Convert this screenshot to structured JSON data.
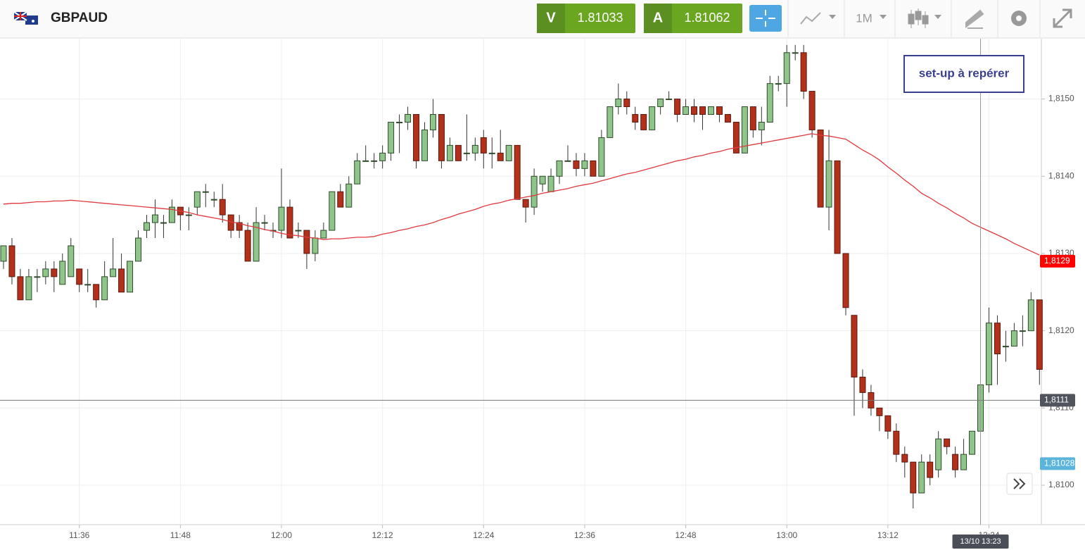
{
  "header": {
    "symbol": "GBPAUD",
    "sell_label": "V",
    "sell_price": "1.81033",
    "buy_label": "A",
    "buy_price": "1.81062",
    "timeframe": "1M"
  },
  "chart_data": {
    "type": "candlestick",
    "annotation": "set-up à repérer",
    "categories": [
      null,
      null,
      null,
      null,
      null,
      null,
      null,
      null,
      null,
      "11:36",
      null,
      null,
      null,
      null,
      null,
      null,
      null,
      null,
      null,
      null,
      null,
      "11:48",
      null,
      null,
      null,
      null,
      null,
      null,
      null,
      null,
      null,
      null,
      null,
      "12:00",
      null,
      null,
      null,
      null,
      null,
      null,
      null,
      null,
      null,
      null,
      null,
      "12:12",
      null,
      null,
      null,
      null,
      null,
      null,
      null,
      null,
      null,
      null,
      null,
      "12:24",
      null,
      null,
      null,
      null,
      null,
      null,
      null,
      null,
      null,
      null,
      null,
      "12:36",
      null,
      null,
      null,
      null,
      null,
      null,
      null,
      null,
      null,
      null,
      null,
      "12:48",
      null,
      null,
      null,
      null,
      null,
      null,
      null,
      null,
      null,
      null,
      null,
      "13:00",
      null,
      null,
      null,
      null,
      null,
      null,
      null,
      null,
      null,
      null,
      null,
      "13:12",
      null,
      null,
      null,
      null,
      null,
      null,
      null,
      null,
      null,
      null,
      null,
      "13:24",
      null,
      null,
      null,
      null,
      null,
      null
    ],
    "open": [
      1.8129,
      1.8131,
      1.8127,
      1.8124,
      1.8127,
      1.8127,
      1.8128,
      1.8126,
      1.8127,
      1.8128,
      1.8126,
      1.8126,
      1.8124,
      1.8127,
      1.8128,
      1.8125,
      1.8129,
      1.8133,
      1.8134,
      1.8134,
      1.8134,
      1.8136,
      1.8135,
      1.8136,
      1.8138,
      1.8137,
      1.8137,
      1.8135,
      1.8134,
      1.8133,
      1.8129,
      1.8134,
      1.8133,
      1.8133,
      1.8136,
      1.8133,
      1.8133,
      1.813,
      1.8132,
      1.8133,
      1.8138,
      1.8136,
      1.8139,
      1.8142,
      1.8142,
      1.8142,
      1.8143,
      1.8147,
      1.8147,
      1.8148,
      1.8142,
      1.8146,
      1.8148,
      1.8142,
      1.8144,
      1.8143,
      1.8143,
      1.8145,
      1.8143,
      1.8143,
      1.8142,
      1.8144,
      1.8137,
      1.8136,
      1.8139,
      1.8138,
      1.814,
      1.8142,
      1.8142,
      1.8141,
      1.8142,
      1.814,
      1.8145,
      1.8149,
      1.815,
      1.8148,
      1.8148,
      1.8146,
      1.8149,
      1.815,
      1.815,
      1.8148,
      1.8149,
      1.8149,
      1.8148,
      1.8149,
      1.8148,
      1.8147,
      1.8143,
      1.8149,
      1.8146,
      1.8147,
      1.8152,
      1.8152,
      1.8156,
      1.8156,
      1.8151,
      1.8146,
      1.8136,
      1.8142,
      1.813,
      1.8122,
      1.8114,
      1.8112,
      1.811,
      1.8109,
      1.8107,
      1.8104,
      1.8103,
      1.8099,
      1.8103,
      1.8102,
      1.8106,
      1.8104,
      1.8102,
      1.8104,
      1.8107,
      1.8113,
      1.8121,
      1.8118,
      1.8118,
      1.812,
      1.812,
      1.8124
    ],
    "high": [
      1.8131,
      1.8132,
      1.8128,
      1.8128,
      1.8128,
      1.8129,
      1.8129,
      1.813,
      1.8132,
      1.8128,
      1.8128,
      1.8126,
      1.8129,
      1.8132,
      1.813,
      1.8129,
      1.8133,
      1.8135,
      1.8137,
      1.8135,
      1.8137,
      1.8136,
      1.8136,
      1.8138,
      1.8139,
      1.8138,
      1.8139,
      1.8135,
      1.8135,
      1.8134,
      1.8136,
      1.8135,
      1.8134,
      1.8141,
      1.8137,
      1.8134,
      1.8133,
      1.8133,
      1.8134,
      1.8138,
      1.8139,
      1.814,
      1.8143,
      1.8144,
      1.8143,
      1.8144,
      1.8147,
      1.8148,
      1.8149,
      1.8148,
      1.8147,
      1.815,
      1.8148,
      1.8145,
      1.8144,
      1.8148,
      1.8145,
      1.8146,
      1.8145,
      1.8146,
      1.8144,
      1.8144,
      1.8137,
      1.8141,
      1.814,
      1.8141,
      1.8142,
      1.8144,
      1.8143,
      1.8143,
      1.8142,
      1.8146,
      1.8149,
      1.8152,
      1.8151,
      1.8149,
      1.8148,
      1.8149,
      1.815,
      1.8151,
      1.815,
      1.815,
      1.815,
      1.8149,
      1.8149,
      1.8149,
      1.8148,
      1.8147,
      1.8149,
      1.8149,
      1.8149,
      1.8153,
      1.8153,
      1.8157,
      1.8157,
      1.8157,
      1.8151,
      1.8146,
      1.8146,
      1.8142,
      1.813,
      1.8122,
      1.8115,
      1.8113,
      1.811,
      1.8109,
      1.8108,
      1.8105,
      1.8103,
      1.8104,
      1.8104,
      1.8107,
      1.8106,
      1.8105,
      1.8106,
      1.8107,
      1.8113,
      1.8123,
      1.8122,
      1.812,
      1.8121,
      1.8122,
      1.8125,
      1.8124
    ],
    "low": [
      1.8128,
      1.8126,
      1.8124,
      1.8124,
      1.8125,
      1.8126,
      1.8125,
      1.8126,
      1.8127,
      1.8125,
      1.8125,
      1.8123,
      1.8124,
      1.8127,
      1.8125,
      1.8125,
      1.8129,
      1.8132,
      1.8132,
      1.8132,
      1.8134,
      1.8133,
      1.8133,
      1.8135,
      1.8136,
      1.8136,
      1.8134,
      1.8132,
      1.8132,
      1.8129,
      1.8129,
      1.8133,
      1.8132,
      1.8132,
      1.8132,
      1.8132,
      1.8128,
      1.8129,
      1.8132,
      1.8133,
      1.8136,
      1.8136,
      1.8139,
      1.8142,
      1.8141,
      1.8141,
      1.8142,
      1.8143,
      1.8146,
      1.8141,
      1.8142,
      1.8145,
      1.8141,
      1.8142,
      1.8142,
      1.8142,
      1.8142,
      1.8141,
      1.8141,
      1.8142,
      1.8142,
      1.8137,
      1.8134,
      1.8135,
      1.8138,
      1.8138,
      1.8139,
      1.8142,
      1.814,
      1.814,
      1.814,
      1.814,
      1.8145,
      1.8148,
      1.8148,
      1.8146,
      1.8146,
      1.8146,
      1.8148,
      1.815,
      1.8147,
      1.8148,
      1.8147,
      1.8146,
      1.8148,
      1.8147,
      1.8147,
      1.8143,
      1.8143,
      1.8145,
      1.8144,
      1.8147,
      1.8151,
      1.8149,
      1.8155,
      1.815,
      1.8145,
      1.8136,
      1.8133,
      1.813,
      1.8122,
      1.8109,
      1.811,
      1.8109,
      1.8107,
      1.8106,
      1.8103,
      1.8101,
      1.8097,
      1.8099,
      1.81,
      1.8101,
      1.8104,
      1.8101,
      1.8102,
      1.8104,
      1.8107,
      1.8112,
      1.8113,
      1.8116,
      1.8118,
      1.8118,
      1.812,
      1.8113
    ],
    "close": [
      1.8131,
      1.8127,
      1.8124,
      1.8127,
      1.8127,
      1.8128,
      1.8127,
      1.8129,
      1.8131,
      1.8126,
      1.8126,
      1.8124,
      1.8127,
      1.8128,
      1.8125,
      1.8129,
      1.8132,
      1.8134,
      1.8135,
      1.8134,
      1.8136,
      1.8135,
      1.8135,
      1.8138,
      1.8138,
      1.8137,
      1.8135,
      1.8133,
      1.8133,
      1.8129,
      1.8134,
      1.8134,
      1.8133,
      1.8136,
      1.8132,
      1.8133,
      1.813,
      1.8132,
      1.8133,
      1.8138,
      1.8136,
      1.8139,
      1.8142,
      1.8142,
      1.8142,
      1.8143,
      1.8147,
      1.8147,
      1.8148,
      1.8142,
      1.8146,
      1.8148,
      1.8142,
      1.8144,
      1.8142,
      1.8143,
      1.8144,
      1.8143,
      1.8143,
      1.8142,
      1.8144,
      1.8137,
      1.8136,
      1.814,
      1.814,
      1.814,
      1.8142,
      1.8142,
      1.8141,
      1.8142,
      1.814,
      1.8145,
      1.8149,
      1.815,
      1.8149,
      1.8147,
      1.8146,
      1.8149,
      1.815,
      1.815,
      1.8148,
      1.8149,
      1.8148,
      1.8148,
      1.8149,
      1.8148,
      1.8147,
      1.8143,
      1.8149,
      1.8146,
      1.8147,
      1.8152,
      1.8152,
      1.8156,
      1.8156,
      1.8151,
      1.8146,
      1.8136,
      1.8142,
      1.813,
      1.8123,
      1.8114,
      1.8112,
      1.811,
      1.8109,
      1.8107,
      1.8104,
      1.8103,
      1.8099,
      1.8103,
      1.8101,
      1.8106,
      1.8105,
      1.8102,
      1.8104,
      1.8107,
      1.8113,
      1.8121,
      1.8117,
      1.8118,
      1.812,
      1.812,
      1.8124,
      1.8115
    ],
    "up_color": "#8fc58a",
    "down_color": "#b3301a",
    "moving_average": {
      "color": "#e0393e",
      "values": [
        1.81364,
        1.81365,
        1.81365,
        1.81366,
        1.81367,
        1.81367,
        1.81368,
        1.81368,
        1.81369,
        1.81368,
        1.81367,
        1.81366,
        1.81365,
        1.81364,
        1.81363,
        1.81362,
        1.81361,
        1.8136,
        1.81359,
        1.81358,
        1.81357,
        1.81355,
        1.81353,
        1.8135,
        1.81348,
        1.81346,
        1.81344,
        1.81341,
        1.81339,
        1.81336,
        1.81334,
        1.81331,
        1.81329,
        1.81326,
        1.81324,
        1.81323,
        1.81321,
        1.8132,
        1.81318,
        1.81319,
        1.81319,
        1.8132,
        1.81321,
        1.81321,
        1.81322,
        1.81325,
        1.81327,
        1.8133,
        1.81332,
        1.81335,
        1.81337,
        1.8134,
        1.81344,
        1.81347,
        1.81351,
        1.81354,
        1.81357,
        1.81361,
        1.81364,
        1.81366,
        1.81369,
        1.81371,
        1.81373,
        1.81375,
        1.81378,
        1.8138,
        1.81382,
        1.81384,
        1.81387,
        1.81389,
        1.81391,
        1.81394,
        1.81397,
        1.814,
        1.81403,
        1.81405,
        1.81408,
        1.81411,
        1.81414,
        1.81417,
        1.8142,
        1.81422,
        1.81425,
        1.81427,
        1.8143,
        1.81432,
        1.81435,
        1.81437,
        1.81439,
        1.81441,
        1.81443,
        1.81445,
        1.81447,
        1.81449,
        1.81451,
        1.81453,
        1.81455,
        1.81453,
        1.81452,
        1.8145,
        1.81448,
        1.81441,
        1.81434,
        1.81428,
        1.81421,
        1.81412,
        1.81404,
        1.81395,
        1.81387,
        1.81378,
        1.81372,
        1.81365,
        1.81359,
        1.81352,
        1.81346,
        1.81339,
        1.81334,
        1.81329,
        1.81324,
        1.81319,
        1.81313,
        1.81308,
        1.81303,
        1.81298
      ]
    },
    "ylim": [
      1.80949,
      1.81578
    ],
    "yticks": [
      {
        "value": 1.81,
        "label": "1,8100"
      },
      {
        "value": 1.811,
        "label": "1,8110"
      },
      {
        "value": 1.812,
        "label": "1,8120"
      },
      {
        "value": 1.813,
        "label": "1,8130"
      },
      {
        "value": 1.814,
        "label": "1,8140"
      },
      {
        "value": 1.815,
        "label": "1,8150"
      }
    ],
    "grid": true,
    "price_markers": [
      {
        "value": 1.8129,
        "label": "1,8129",
        "color": "#ff0000"
      },
      {
        "value": 1.8111,
        "label": "1,8111",
        "color": "#50545c"
      },
      {
        "value": 1.81028,
        "label": "1,81028",
        "color": "#5ab4dc"
      }
    ],
    "crosshair": {
      "y": {
        "value": 1.8111,
        "label": "1,8111"
      },
      "x_label": "13/10 13:23"
    }
  }
}
